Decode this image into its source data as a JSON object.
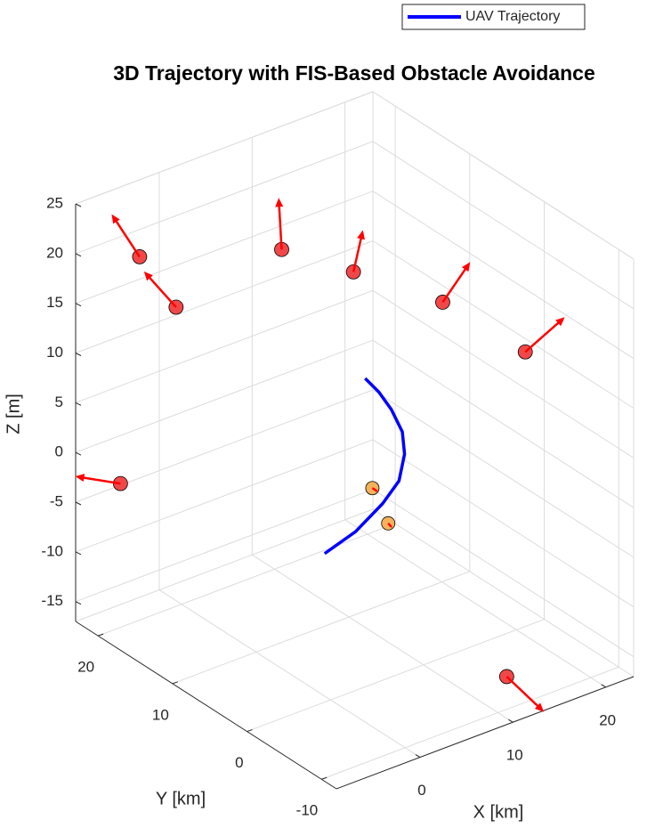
{
  "chart_data": {
    "type": "scatter3d",
    "title": "3D Trajectory with FIS-Based Obstacle Avoidance",
    "xlabel": "X [km]",
    "ylabel": "Y [km]",
    "zlabel": "Z [m]",
    "xlim": [
      -9,
      23
    ],
    "ylim": [
      -12,
      23
    ],
    "zlim": [
      -17,
      25
    ],
    "xticks": [
      0,
      10,
      20
    ],
    "yticks": [
      -10,
      0,
      10,
      20
    ],
    "zticks": [
      -15,
      -10,
      -5,
      0,
      5,
      10,
      15,
      20,
      25
    ],
    "grid": true,
    "legend": "top-right",
    "series": [
      {
        "name": "UAV Trajectory",
        "color": "#0000ff",
        "x": [
          7.7,
          9.9,
          12.5,
          13.7,
          14.7,
          14.7,
          14.0,
          12.8,
          11.1
        ],
        "y": [
          10.4,
          9.0,
          8.6,
          7.9,
          8.4,
          8.7,
          9.3,
          9.5,
          9.2
        ],
        "z": [
          -10,
          -7.9,
          -5.8,
          -3.6,
          -1.5,
          0.6,
          2.8,
          4.9,
          7
        ]
      }
    ],
    "obstacles": [
      {
        "color": "#f04848",
        "arrow_color": "#ff0000",
        "x": [
          -5.0,
          -2.6,
          5.4,
          10.0,
          16.0,
          21.6,
          -6.1,
          12.3
        ],
        "y": [
          19.4,
          17.5,
          13.3,
          9.4,
          4.9,
          0.8,
          20.6,
          -8.3
        ],
        "z": [
          20,
          15,
          20,
          18,
          15,
          10,
          -3,
          -15
        ],
        "u": [
          2.6,
          1.6,
          0,
          1.9,
          4.0,
          5.3,
          -2.3,
          -1.2
        ],
        "v": [
          7.0,
          6.3,
          0.4,
          1.1,
          1.3,
          1.3,
          3.2,
          -6.5
        ],
        "w": [
          0,
          0,
          5,
          3,
          2,
          1,
          0,
          0
        ]
      },
      {
        "color": "#f5b25b",
        "arrow_color": "#ff0000",
        "x": [
          12.6,
          13.1
        ],
        "y": [
          10.1,
          8.6
        ],
        "z": [
          -5,
          -8
        ],
        "u": [
          0,
          -0.2
        ],
        "v": [
          -0.8,
          -0.8
        ],
        "w": [
          0,
          0
        ]
      }
    ]
  }
}
